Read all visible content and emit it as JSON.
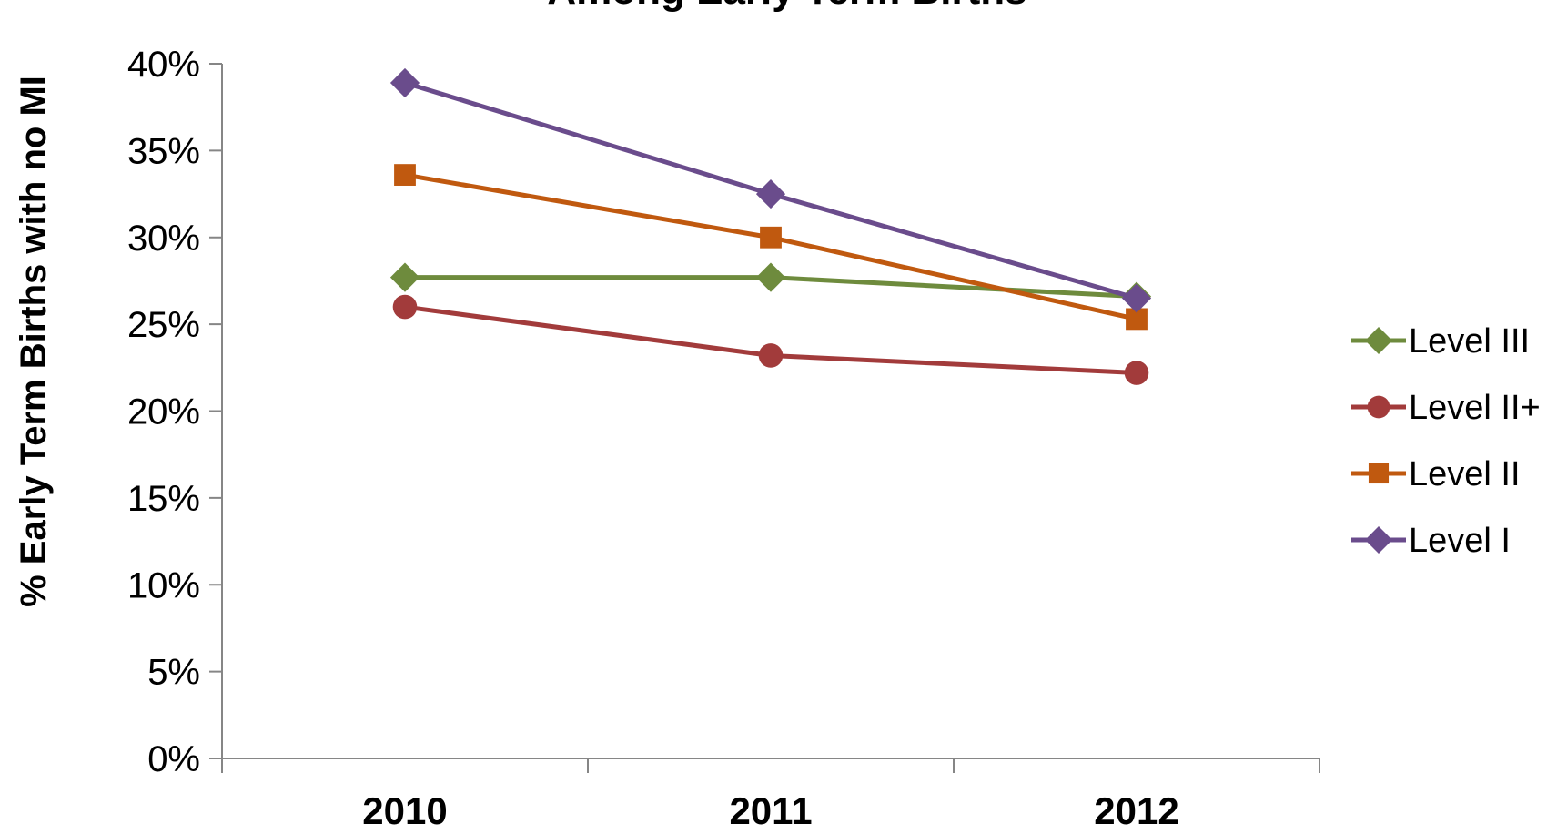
{
  "chart_data": {
    "type": "line",
    "title": "Among Early Term Births",
    "xlabel": "",
    "ylabel": "% Early Term Births with no MI",
    "categories": [
      "2010",
      "2011",
      "2012"
    ],
    "ylim": [
      0,
      40
    ],
    "yticks": [
      "0%",
      "5%",
      "10%",
      "15%",
      "20%",
      "25%",
      "30%",
      "35%",
      "40%"
    ],
    "grid": false,
    "legend_position": "right",
    "series": [
      {
        "name": "Level III",
        "values": [
          27.7,
          27.7,
          26.6
        ],
        "color": "#6E8B3D",
        "marker": "diamond"
      },
      {
        "name": "Level II+",
        "values": [
          26.0,
          23.2,
          22.2
        ],
        "color": "#A23B3B",
        "marker": "circle"
      },
      {
        "name": "Level II",
        "values": [
          33.6,
          30.0,
          25.3
        ],
        "color": "#C0590F",
        "marker": "square"
      },
      {
        "name": "Level I",
        "values": [
          38.9,
          32.5,
          26.5
        ],
        "color": "#6A4C8C",
        "marker": "diamond"
      }
    ]
  }
}
